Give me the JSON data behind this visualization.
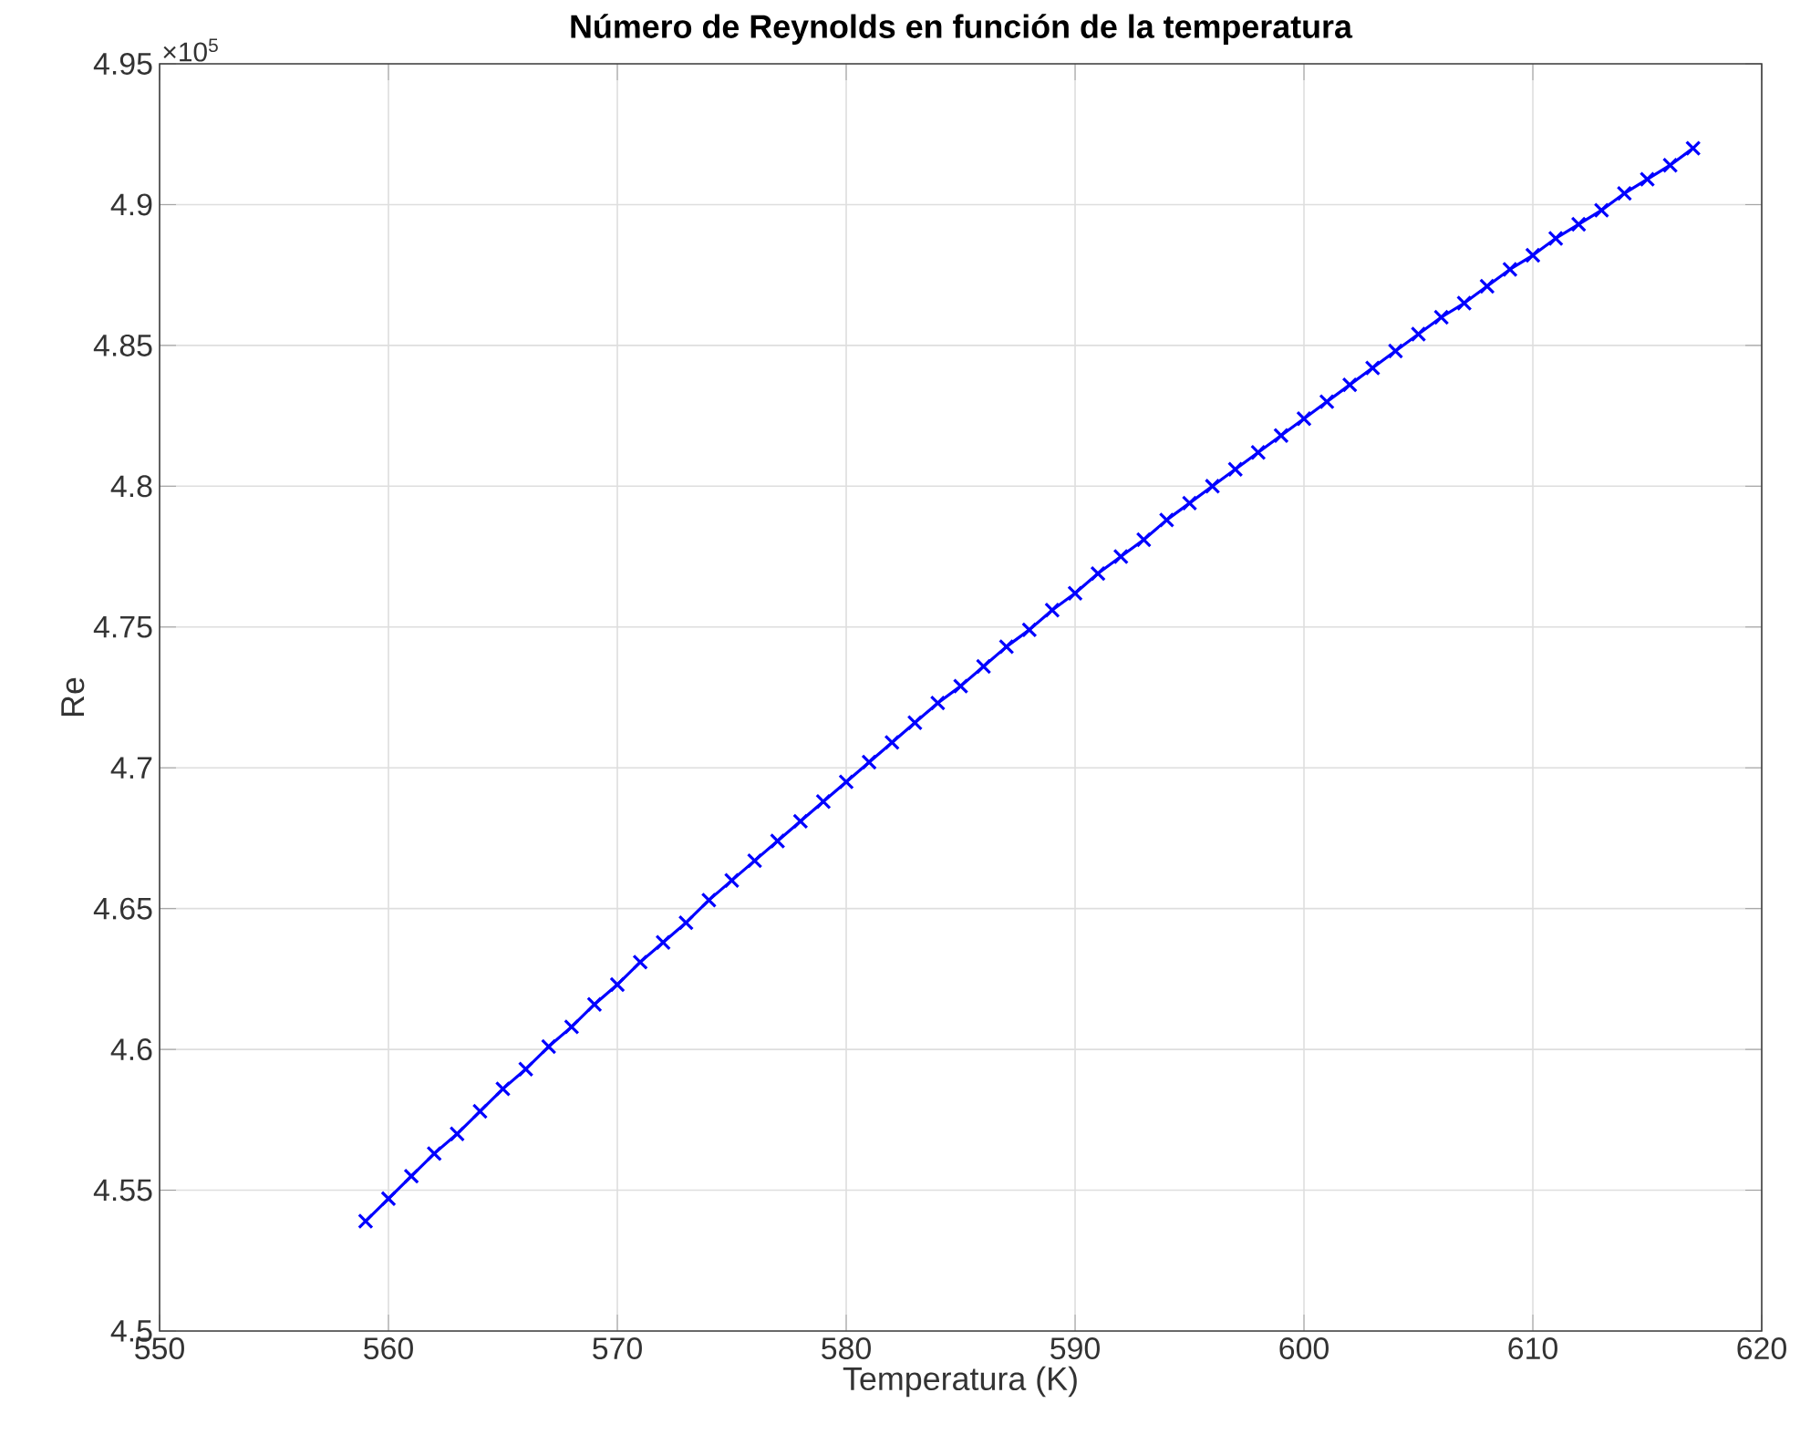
{
  "chart_data": {
    "type": "line",
    "title": "Número de Reynolds en función de la temperatura",
    "xlabel": "Temperatura (K)",
    "ylabel": "Re",
    "annotations": [
      "×10$^{5}$"
    ],
    "x": [
      559,
      560,
      561,
      562,
      563,
      564,
      565,
      566,
      567,
      568,
      569,
      570,
      571,
      572,
      573,
      574,
      575,
      576,
      577,
      578,
      579,
      580,
      581,
      582,
      583,
      584,
      585,
      586,
      587,
      588,
      589,
      590,
      591,
      592,
      593,
      594,
      595,
      596,
      597,
      598,
      599,
      600,
      601,
      602,
      603,
      604,
      605,
      606,
      607,
      608,
      609,
      610,
      611,
      612,
      613,
      614,
      615,
      616,
      617
    ],
    "series": [
      {
        "color": "#0000ff",
        "values": [
          4.539,
          4.547,
          4.555,
          4.563,
          4.57,
          4.578,
          4.586,
          4.593,
          4.601,
          4.608,
          4.616,
          4.623,
          4.631,
          4.638,
          4.645,
          4.653,
          4.66,
          4.667,
          4.674,
          4.681,
          4.688,
          4.695,
          4.702,
          4.709,
          4.716,
          4.723,
          4.729,
          4.736,
          4.743,
          4.749,
          4.756,
          4.762,
          4.769,
          4.775,
          4.781,
          4.788,
          4.794,
          4.8,
          4.806,
          4.812,
          4.818,
          4.824,
          4.83,
          4.836,
          4.842,
          4.848,
          4.854,
          4.86,
          4.865,
          4.871,
          4.877,
          4.882,
          4.888,
          4.893,
          4.898,
          4.904,
          4.909,
          4.914,
          4.92
        ]
      }
    ],
    "xlim": [
      550,
      620
    ],
    "ylim": [
      4.5,
      4.95
    ],
    "xticks": [
      550,
      560,
      570,
      580,
      590,
      600,
      610,
      620
    ],
    "yticks": [
      4.5,
      4.55,
      4.6,
      4.65,
      4.7,
      4.75,
      4.8,
      4.85,
      4.9,
      4.95
    ],
    "grid": true,
    "marker": "cross",
    "line_style": "solid"
  }
}
